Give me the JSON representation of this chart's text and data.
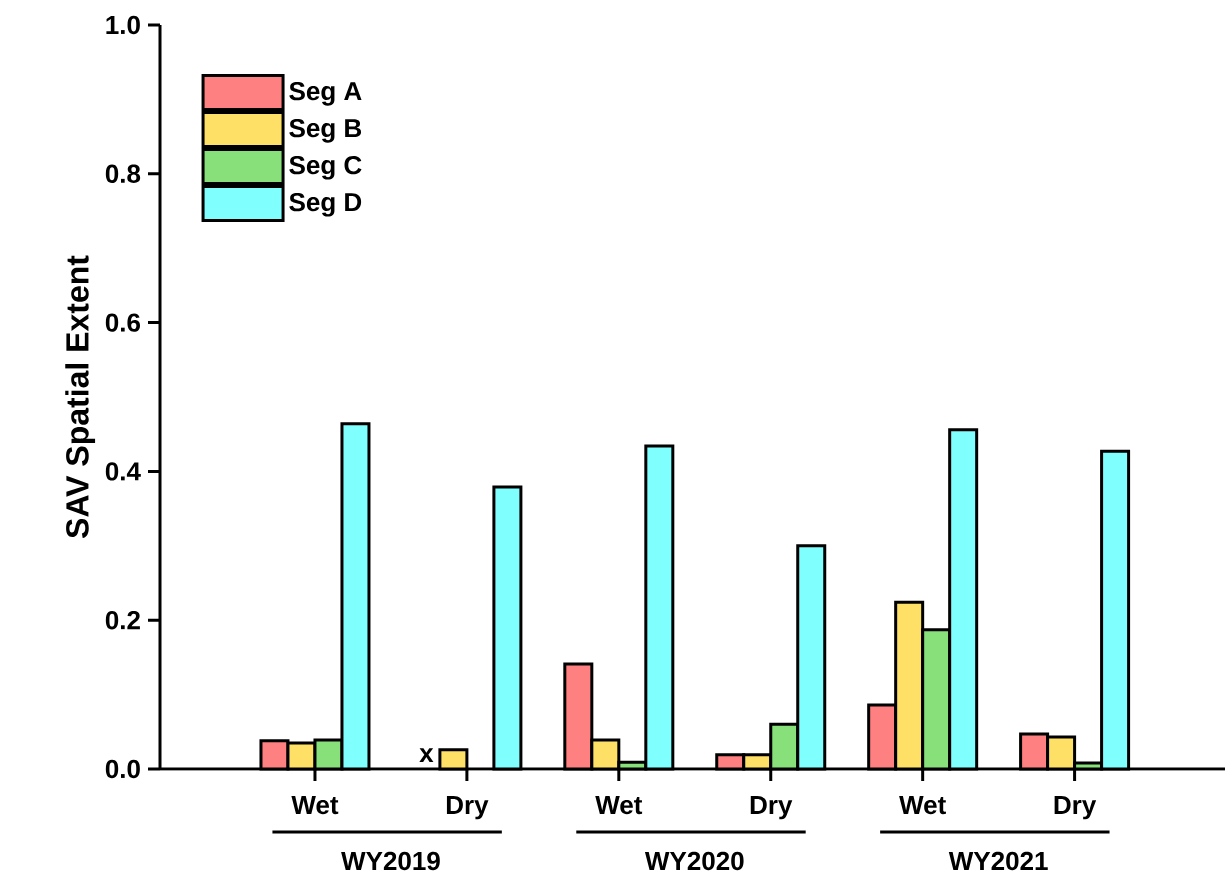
{
  "chart_data": {
    "type": "bar",
    "ylabel": "SAV Spatial Extent",
    "categories": [
      "Wet",
      "Dry",
      "Wet",
      "Dry",
      "Wet",
      "Dry"
    ],
    "series": [
      {
        "name": "Seg A",
        "color": "#ff8080",
        "values": [
          0.038,
          null,
          0.141,
          0.019,
          0.086,
          0.047
        ]
      },
      {
        "name": "Seg B",
        "color": "#ffe066",
        "values": [
          0.035,
          0.026,
          0.039,
          0.019,
          0.224,
          0.043
        ]
      },
      {
        "name": "Seg C",
        "color": "#88e07a",
        "values": [
          0.039,
          null,
          0.009,
          0.06,
          0.187,
          0.008
        ]
      },
      {
        "name": "Seg D",
        "color": "#80ffff",
        "values": [
          0.464,
          0.379,
          0.434,
          0.3,
          0.456,
          0.427
        ]
      }
    ],
    "ylim": [
      0,
      1.0
    ],
    "yticks": [
      {
        "value": 0,
        "label": "0.0"
      },
      {
        "value": 0.2,
        "label": "0.2"
      },
      {
        "value": 0.4,
        "label": "0.4"
      },
      {
        "value": 0.6,
        "label": "0.6"
      },
      {
        "value": 0.8,
        "label": "0.8"
      },
      {
        "value": 1.0,
        "label": "1.0"
      }
    ],
    "legend": "top left",
    "annotations": [
      "x",
      "WY2019",
      "WY2020",
      "WY2021"
    ]
  }
}
